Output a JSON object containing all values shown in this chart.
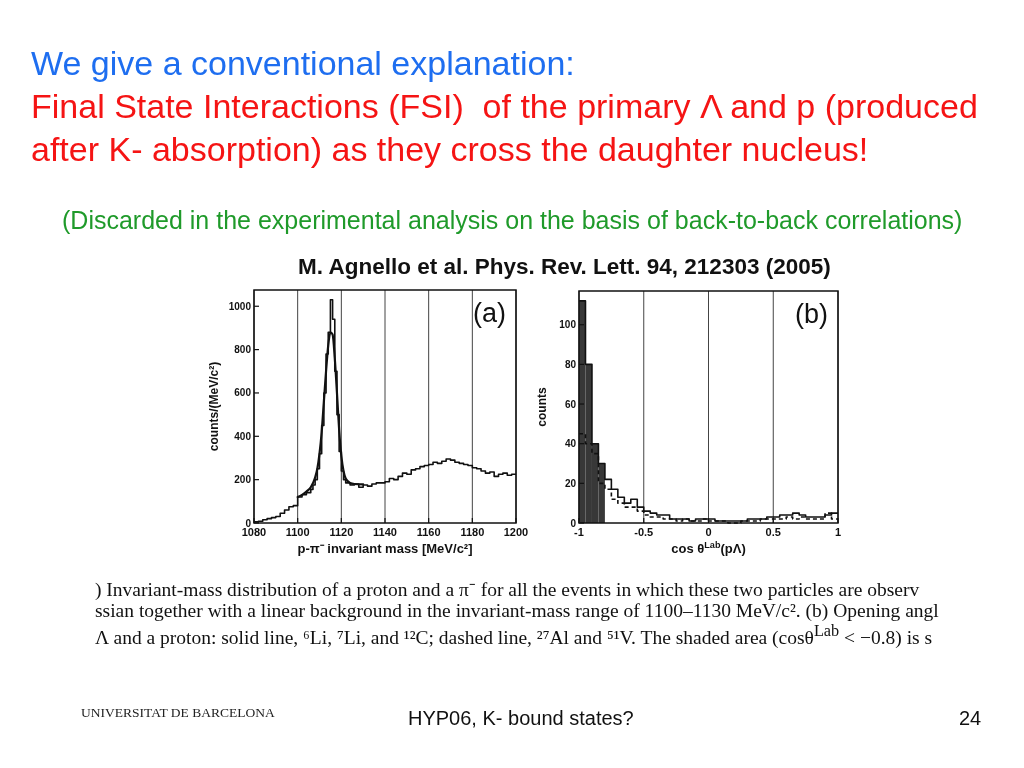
{
  "chart_data": [
    {
      "type": "other",
      "title": "We give a conventional explanation:",
      "subtitle": "Final State Interactions (FSI)  of the primary Λ and p (produced after K- absorption) as they cross the daughter nucleus!",
      "annotations": [
        "(Discarded in the experimental analysis on the basis of back-to-back correlations)",
        "M. Agnello et al. Phys. Rev. Lett. 94, 212303 (2005)"
      ]
    },
    {
      "type": "step",
      "title": "(a)",
      "xlabel": "p-π⁻ invariant mass [MeV/c²]",
      "ylabel": "counts/(MeV/c²)",
      "xlim": [
        1080,
        1200
      ],
      "ylim": [
        0,
        1075
      ],
      "xticks": [
        1080,
        1100,
        1120,
        1140,
        1160,
        1180,
        1200
      ],
      "yticks": [
        0,
        200,
        400,
        600,
        800,
        1000
      ],
      "grid": "x",
      "series": [
        {
          "type": "step",
          "color": "#111111",
          "x": [
            1080,
            1082,
            1084,
            1086,
            1088,
            1090,
            1092,
            1094,
            1096,
            1098,
            1100,
            1102,
            1104,
            1106,
            1107,
            1108,
            1109,
            1110,
            1111,
            1112,
            1113,
            1114,
            1115,
            1116,
            1117,
            1118,
            1119,
            1120,
            1121,
            1122,
            1124,
            1126,
            1128,
            1130,
            1132,
            1134,
            1136,
            1138,
            1140,
            1142,
            1144,
            1146,
            1148,
            1150,
            1152,
            1154,
            1156,
            1158,
            1160,
            1162,
            1164,
            1166,
            1168,
            1170,
            1172,
            1174,
            1176,
            1178,
            1180,
            1182,
            1184,
            1186,
            1188,
            1190,
            1192,
            1194,
            1196,
            1198,
            1200
          ],
          "values": [
            5,
            8,
            15,
            20,
            25,
            30,
            45,
            60,
            75,
            80,
            120,
            130,
            140,
            155,
            175,
            200,
            250,
            320,
            450,
            600,
            780,
            880,
            1030,
            940,
            700,
            500,
            330,
            240,
            200,
            185,
            175,
            180,
            165,
            175,
            170,
            180,
            185,
            185,
            190,
            205,
            200,
            215,
            230,
            225,
            245,
            250,
            260,
            265,
            270,
            280,
            275,
            285,
            295,
            290,
            280,
            275,
            270,
            265,
            255,
            250,
            240,
            230,
            235,
            215,
            225,
            230,
            220,
            225,
            225
          ]
        },
        {
          "type": "line",
          "color": "#111111",
          "x": [
            1100,
            1102,
            1104,
            1106,
            1108,
            1109,
            1110,
            1111,
            1112,
            1113,
            1114,
            1115,
            1116,
            1117,
            1118,
            1119,
            1120,
            1121,
            1122,
            1124,
            1126,
            1130
          ],
          "values": [
            120,
            130,
            145,
            165,
            210,
            250,
            320,
            420,
            560,
            700,
            820,
            880,
            870,
            760,
            600,
            430,
            310,
            240,
            205,
            185,
            180,
            178
          ]
        }
      ]
    },
    {
      "type": "step",
      "title": "(b)",
      "xlabel": "cos θ$^{Lab}$(pΛ)",
      "ylabel": "counts",
      "xlim": [
        -1,
        1
      ],
      "ylim": [
        0,
        117
      ],
      "xticks": [
        -1,
        -0.5,
        0,
        0.5,
        1
      ],
      "yticks": [
        0,
        20,
        40,
        60,
        80,
        100
      ],
      "grid": "x",
      "series": [
        {
          "type": "histogram",
          "color": "#383838",
          "bins": [
            -1,
            -0.95,
            -0.9,
            -0.85,
            -0.8
          ],
          "values": [
            112,
            80,
            40,
            30
          ]
        },
        {
          "type": "step",
          "color": "#111111",
          "line_style": "solid",
          "x": [
            -1,
            -0.95,
            -0.9,
            -0.85,
            -0.8,
            -0.75,
            -0.7,
            -0.65,
            -0.6,
            -0.55,
            -0.5,
            -0.45,
            -0.4,
            -0.35,
            -0.3,
            -0.25,
            -0.2,
            -0.15,
            -0.1,
            -0.05,
            0,
            0.05,
            0.1,
            0.15,
            0.2,
            0.25,
            0.3,
            0.35,
            0.4,
            0.45,
            0.5,
            0.55,
            0.6,
            0.65,
            0.7,
            0.75,
            0.8,
            0.85,
            0.9,
            0.95,
            1
          ],
          "values": [
            112,
            80,
            40,
            30,
            22,
            17,
            13,
            10,
            12,
            8,
            6,
            5,
            4,
            4,
            2,
            2,
            2,
            1,
            2,
            2,
            2,
            1,
            1,
            1,
            1,
            1,
            2,
            2,
            2,
            3,
            3,
            4,
            4,
            5,
            4,
            3,
            3,
            3,
            4,
            5,
            5
          ]
        },
        {
          "type": "step",
          "color": "#111111",
          "line_style": "dashed",
          "x": [
            -1,
            -0.95,
            -0.9,
            -0.85,
            -0.8,
            -0.75,
            -0.7,
            -0.65,
            -0.6,
            -0.55,
            -0.5,
            -0.45,
            -0.4,
            -0.35,
            -0.3,
            -0.25,
            -0.2,
            -0.15,
            -0.1,
            -0.05,
            0,
            0.05,
            0.1,
            0.15,
            0.2,
            0.25,
            0.3,
            0.35,
            0.4,
            0.45,
            0.5,
            0.55,
            0.6,
            0.65,
            0.7,
            0.75,
            0.8,
            0.85,
            0.9,
            0.95,
            1
          ],
          "values": [
            45,
            40,
            35,
            20,
            17,
            12,
            10,
            8,
            8,
            6,
            4,
            3,
            3,
            2,
            2,
            1,
            2,
            1,
            1,
            2,
            1,
            1,
            1,
            0,
            0,
            1,
            1,
            1,
            2,
            2,
            2,
            2,
            3,
            2,
            3,
            2,
            2,
            2,
            5,
            2,
            2
          ]
        }
      ]
    },
    {
      "type": "other",
      "annotations": [
        ") Invariant-mass distribution of a proton and a π⁻ for all the events in which these two particles are observ",
        "ssian together with a linear background in the invariant-mass range of 1100–1130 MeV/c². (b) Opening angl",
        "Λ and a proton: solid line, ⁶Li, ⁷Li, and ¹²C; dashed line, ²⁷Al and ⁵¹V. The shaded area (cosθ$^{Lab}$ < −0.8) is s",
        "UNIVERSITAT DE BARCELONA",
        "HYP06, K- bound states?",
        "24"
      ]
    }
  ]
}
